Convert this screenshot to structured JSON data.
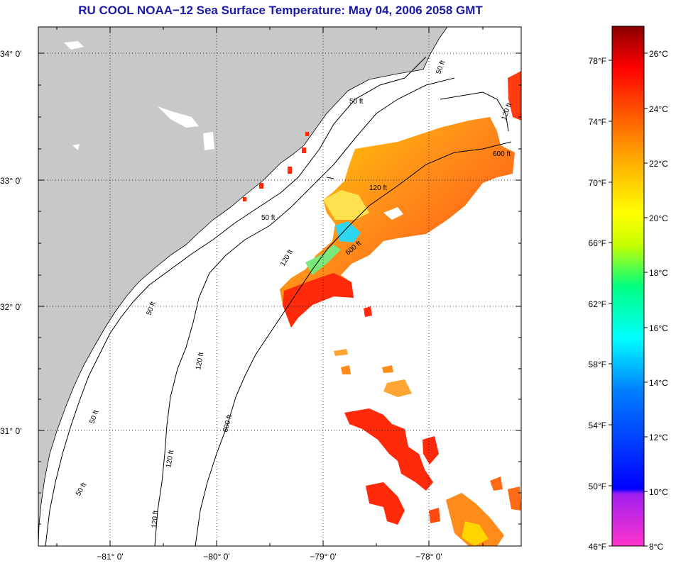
{
  "title": "RU COOL  NOAA−12  Sea Surface Temperature:  May 04, 2006 2058 GMT",
  "map": {
    "lat_ticks": [
      "34° 0'",
      "33° 0'",
      "32° 0'",
      "31° 0'"
    ],
    "lon_ticks": [
      "−81° 0'",
      "−80° 0'",
      "−79° 0'",
      "−78° 0'"
    ],
    "contour_labels": {
      "c50": "50 ft",
      "c120": "120 ft",
      "c600": "600 ft"
    },
    "colors": {
      "land": "#c8c8c8",
      "sea": "#ffffff",
      "grid": "#000000"
    }
  },
  "colorbar": {
    "fahrenheit": [
      "78°F",
      "74°F",
      "70°F",
      "66°F",
      "62°F",
      "58°F",
      "54°F",
      "50°F",
      "46°F"
    ],
    "celsius": [
      "26°C",
      "24°C",
      "22°C",
      "20°C",
      "18°C",
      "16°C",
      "14°C",
      "12°C",
      "10°C",
      "8°C"
    ],
    "colors": [
      "#ff33cc",
      "#a020f0",
      "#0000ff",
      "#0080ff",
      "#00ffff",
      "#00ff80",
      "#c8ff00",
      "#ffff00",
      "#ffa500",
      "#ff4500",
      "#ff0000",
      "#8b0000"
    ]
  }
}
